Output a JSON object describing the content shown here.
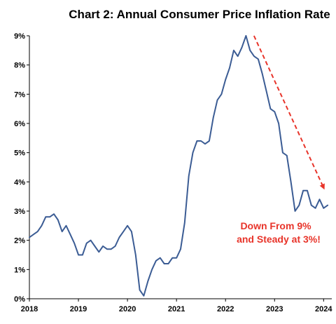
{
  "chart_data": {
    "type": "line",
    "title": "Chart 2: Annual Consumer Price Inflation Rate",
    "xlabel": "",
    "ylabel": "",
    "xlim": [
      2018.0,
      2024.167
    ],
    "ylim": [
      0,
      9
    ],
    "x_ticks": [
      "2018",
      "2019",
      "2020",
      "2021",
      "2022",
      "2023",
      "2024"
    ],
    "y_ticks": [
      "0%",
      "1%",
      "2%",
      "3%",
      "4%",
      "5%",
      "6%",
      "7%",
      "8%",
      "9%"
    ],
    "grid": false,
    "legend": "none",
    "series": [
      {
        "color": "#3b5c94",
        "points": [
          [
            2018.0,
            2.1
          ],
          [
            2018.083,
            2.2
          ],
          [
            2018.167,
            2.3
          ],
          [
            2018.25,
            2.5
          ],
          [
            2018.333,
            2.8
          ],
          [
            2018.417,
            2.8
          ],
          [
            2018.5,
            2.9
          ],
          [
            2018.583,
            2.7
          ],
          [
            2018.667,
            2.3
          ],
          [
            2018.75,
            2.5
          ],
          [
            2018.833,
            2.2
          ],
          [
            2018.917,
            1.9
          ],
          [
            2019.0,
            1.5
          ],
          [
            2019.083,
            1.5
          ],
          [
            2019.167,
            1.9
          ],
          [
            2019.25,
            2.0
          ],
          [
            2019.333,
            1.8
          ],
          [
            2019.417,
            1.6
          ],
          [
            2019.5,
            1.8
          ],
          [
            2019.583,
            1.7
          ],
          [
            2019.667,
            1.7
          ],
          [
            2019.75,
            1.8
          ],
          [
            2019.833,
            2.1
          ],
          [
            2019.917,
            2.3
          ],
          [
            2020.0,
            2.5
          ],
          [
            2020.083,
            2.3
          ],
          [
            2020.167,
            1.5
          ],
          [
            2020.25,
            0.3
          ],
          [
            2020.333,
            0.1
          ],
          [
            2020.417,
            0.6
          ],
          [
            2020.5,
            1.0
          ],
          [
            2020.583,
            1.3
          ],
          [
            2020.667,
            1.4
          ],
          [
            2020.75,
            1.2
          ],
          [
            2020.833,
            1.2
          ],
          [
            2020.917,
            1.4
          ],
          [
            2021.0,
            1.4
          ],
          [
            2021.083,
            1.7
          ],
          [
            2021.167,
            2.6
          ],
          [
            2021.25,
            4.2
          ],
          [
            2021.333,
            5.0
          ],
          [
            2021.417,
            5.4
          ],
          [
            2021.5,
            5.4
          ],
          [
            2021.583,
            5.3
          ],
          [
            2021.667,
            5.4
          ],
          [
            2021.75,
            6.2
          ],
          [
            2021.833,
            6.8
          ],
          [
            2021.917,
            7.0
          ],
          [
            2022.0,
            7.5
          ],
          [
            2022.083,
            7.9
          ],
          [
            2022.167,
            8.5
          ],
          [
            2022.25,
            8.3
          ],
          [
            2022.333,
            8.6
          ],
          [
            2022.417,
            9.0
          ],
          [
            2022.5,
            8.5
          ],
          [
            2022.583,
            8.3
          ],
          [
            2022.667,
            8.2
          ],
          [
            2022.75,
            7.7
          ],
          [
            2022.833,
            7.1
          ],
          [
            2022.917,
            6.5
          ],
          [
            2023.0,
            6.4
          ],
          [
            2023.083,
            6.0
          ],
          [
            2023.167,
            5.0
          ],
          [
            2023.25,
            4.9
          ],
          [
            2023.333,
            4.0
          ],
          [
            2023.417,
            3.0
          ],
          [
            2023.5,
            3.2
          ],
          [
            2023.583,
            3.7
          ],
          [
            2023.667,
            3.7
          ],
          [
            2023.75,
            3.2
          ],
          [
            2023.833,
            3.1
          ],
          [
            2023.917,
            3.4
          ],
          [
            2024.0,
            3.1
          ],
          [
            2024.083,
            3.2
          ]
        ]
      }
    ],
    "trend_arrow": {
      "color": "#e8342a",
      "style": "dashed",
      "from": [
        2022.58,
        9.0
      ],
      "to": [
        2024.0,
        3.8
      ]
    },
    "annotation": {
      "lines": [
        "Down From 9%",
        "and Steady at 3%!"
      ],
      "color": "#e8342a"
    }
  }
}
